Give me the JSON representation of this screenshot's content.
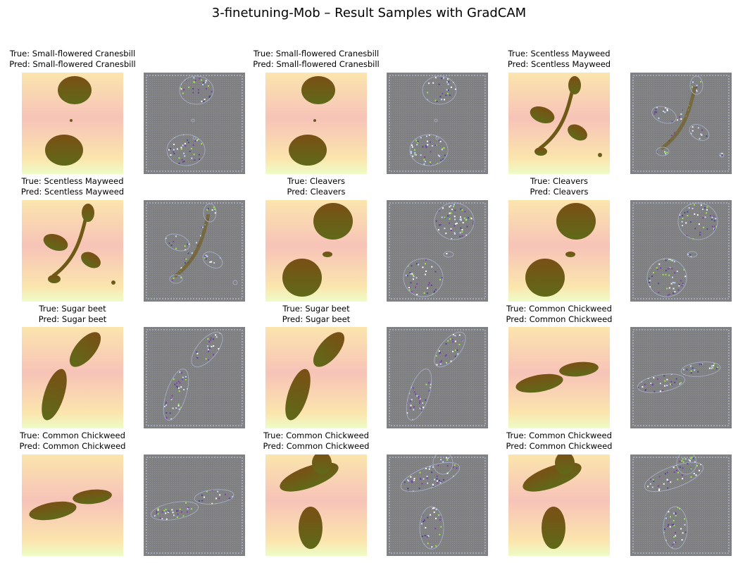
{
  "figure": {
    "title": "3-finetuning-Mob – Result Samples with GradCAM"
  },
  "samples": [
    {
      "true_label": "True: Small-flowered Cranesbill",
      "pred_label": "Pred: Small-flowered Cranesbill",
      "shape": "cranesbill"
    },
    {
      "true_label": "True: Small-flowered Cranesbill",
      "pred_label": "Pred: Small-flowered Cranesbill",
      "shape": "cranesbill"
    },
    {
      "true_label": "True: Scentless Mayweed",
      "pred_label": "Pred: Scentless Mayweed",
      "shape": "mayweed"
    },
    {
      "true_label": "True: Scentless Mayweed",
      "pred_label": "Pred: Scentless Mayweed",
      "shape": "mayweed"
    },
    {
      "true_label": "True: Cleavers",
      "pred_label": "Pred: Cleavers",
      "shape": "cleavers"
    },
    {
      "true_label": "True: Cleavers",
      "pred_label": "Pred: Cleavers",
      "shape": "cleavers"
    },
    {
      "true_label": "True: Sugar beet",
      "pred_label": "Pred: Sugar beet",
      "shape": "sugarbeet"
    },
    {
      "true_label": "True: Sugar beet",
      "pred_label": "Pred: Sugar beet",
      "shape": "sugarbeet"
    },
    {
      "true_label": "True: Common Chickweed",
      "pred_label": "Pred: Common Chickweed",
      "shape": "chickweed_flat"
    },
    {
      "true_label": "True: Common Chickweed",
      "pred_label": "Pred: Common Chickweed",
      "shape": "chickweed_flat"
    },
    {
      "true_label": "True: Common Chickweed",
      "pred_label": "Pred: Common Chickweed",
      "shape": "chickweed_tall"
    },
    {
      "true_label": "True: Common Chickweed",
      "pred_label": "Pred: Common Chickweed",
      "shape": "chickweed_tall"
    }
  ],
  "colors": {
    "plant": "#6e5a16",
    "heatmap_warm": "#f7c3b8",
    "heatmap_yellow": "#fbe5ad",
    "heatmap_green": "#eefcc6",
    "saliency_bg": "#808080"
  }
}
